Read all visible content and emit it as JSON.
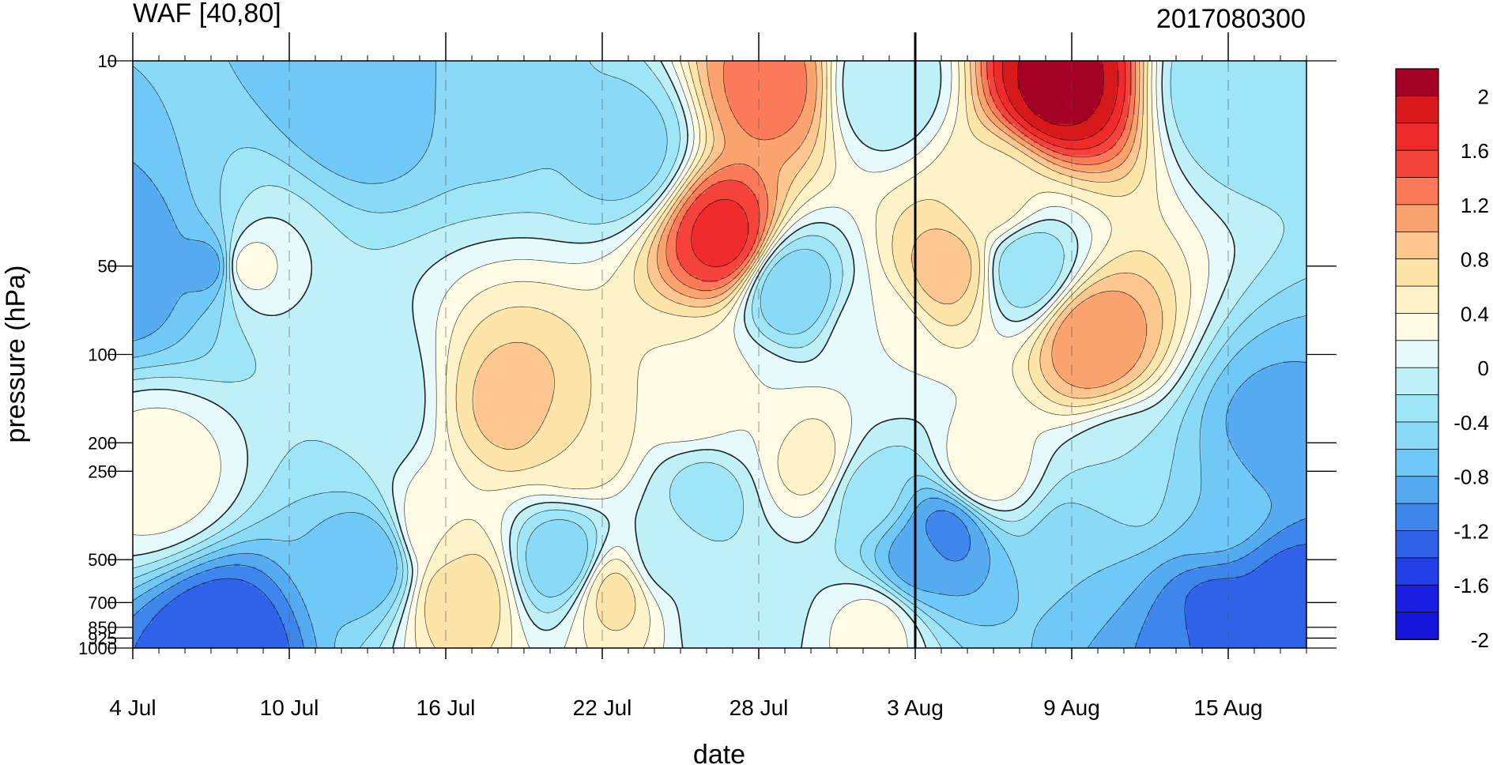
{
  "chart_data": {
    "type": "heatmap",
    "title": "WAF [40,80]",
    "subtitle": "2017080300",
    "xlabel": "date",
    "ylabel": "pressure (hPa)",
    "x_ticks": [
      "4 Jul",
      "10 Jul",
      "16 Jul",
      "22 Jul",
      "28 Jul",
      "3 Aug",
      "9 Aug",
      "15 Aug"
    ],
    "x_range_days_from_4Jul": [
      0,
      45
    ],
    "y_ticks": [
      10,
      50,
      100,
      200,
      250,
      500,
      700,
      850,
      925,
      1000
    ],
    "y_scale": "log",
    "y_range": [
      1000,
      10
    ],
    "current_date_marker": "3 Aug",
    "colorbar": {
      "labels": [
        "2",
        "1.6",
        "1.2",
        "0.8",
        "0.4",
        "0",
        "-0.4",
        "-0.8",
        "-1.2",
        "-1.6",
        "-2"
      ],
      "colors": [
        "#a50026",
        "#d7191c",
        "#ee2a2a",
        "#f5423b",
        "#fa7a5a",
        "#fba36f",
        "#fcc691",
        "#fde4a8",
        "#fef3c8",
        "#fffbe4",
        "#e6f9fb",
        "#bff0f7",
        "#9ee6f7",
        "#8adaf7",
        "#6fc8f5",
        "#55aaf0",
        "#3f86ec",
        "#2f62e9",
        "#233fe7",
        "#1a1ee3",
        "#1414d8"
      ]
    },
    "field_peaks": [
      {
        "day": 3.3,
        "p": 50,
        "v": -1.2
      },
      {
        "day": 8.7,
        "p": 12,
        "v": -0.8
      },
      {
        "day": 9.2,
        "p": 500,
        "v": -0.8
      },
      {
        "day": 3.4,
        "p": 1000,
        "v": -1.4
      },
      {
        "day": 0.0,
        "p": 50,
        "v": -1.0
      },
      {
        "day": 4.0,
        "p": 50,
        "v": 0.6
      },
      {
        "day": 1.0,
        "p": 250,
        "v": 0.3
      },
      {
        "day": 8.9,
        "p": 150,
        "v": -0.2
      },
      {
        "day": 14.2,
        "p": 12,
        "v": -0.5
      },
      {
        "day": 11.5,
        "p": 400,
        "v": 0.4
      },
      {
        "day": 12.5,
        "p": 650,
        "v": 0.8
      },
      {
        "day": 16.5,
        "p": 500,
        "v": -0.6
      },
      {
        "day": 14.8,
        "p": 150,
        "v": 0.9
      },
      {
        "day": 17.0,
        "p": 200,
        "v": 0.6
      },
      {
        "day": 18.5,
        "p": 650,
        "v": 0.7
      },
      {
        "day": 19.0,
        "p": 20,
        "v": -0.5
      },
      {
        "day": 21.5,
        "p": 140,
        "v": 0.4
      },
      {
        "day": 20.3,
        "p": 500,
        "v": -0.1
      },
      {
        "day": 22.7,
        "p": 40,
        "v": 1.7
      },
      {
        "day": 24.5,
        "p": 12,
        "v": 1.3
      },
      {
        "day": 22.0,
        "p": 300,
        "v": -0.3
      },
      {
        "day": 23.0,
        "p": 700,
        "v": -0.2
      },
      {
        "day": 25.2,
        "p": 60,
        "v": -0.6
      },
      {
        "day": 26.0,
        "p": 230,
        "v": 0.5
      },
      {
        "day": 23.5,
        "p": 150,
        "v": 0.2
      },
      {
        "day": 28.8,
        "p": 12,
        "v": -0.2
      },
      {
        "day": 28.5,
        "p": 850,
        "v": 0.3
      },
      {
        "day": 30.0,
        "p": 500,
        "v": -0.9
      },
      {
        "day": 28.2,
        "p": 300,
        "v": -0.3
      },
      {
        "day": 31.2,
        "p": 400,
        "v": -1.1
      },
      {
        "day": 31.3,
        "p": 50,
        "v": 0.9
      },
      {
        "day": 28.5,
        "p": 90,
        "v": 0.2
      },
      {
        "day": 32.5,
        "p": 250,
        "v": 0.4
      },
      {
        "day": 33.0,
        "p": 30,
        "v": 0.5
      },
      {
        "day": 34.2,
        "p": 50,
        "v": -0.4
      },
      {
        "day": 35.5,
        "p": 12,
        "v": 2.1
      },
      {
        "day": 36.8,
        "p": 90,
        "v": 1.2
      },
      {
        "day": 38.0,
        "p": 250,
        "v": -0.2
      },
      {
        "day": 36.5,
        "p": 500,
        "v": -0.6
      },
      {
        "day": 41.5,
        "p": 300,
        "v": -0.6
      },
      {
        "day": 41.5,
        "p": 900,
        "v": -1.4
      },
      {
        "day": 44.5,
        "p": 700,
        "v": -1.3
      },
      {
        "day": 39.5,
        "p": 1000,
        "v": -1.0
      },
      {
        "day": 42.0,
        "p": 12,
        "v": -0.4
      },
      {
        "day": 43.5,
        "p": 200,
        "v": -0.9
      }
    ]
  }
}
